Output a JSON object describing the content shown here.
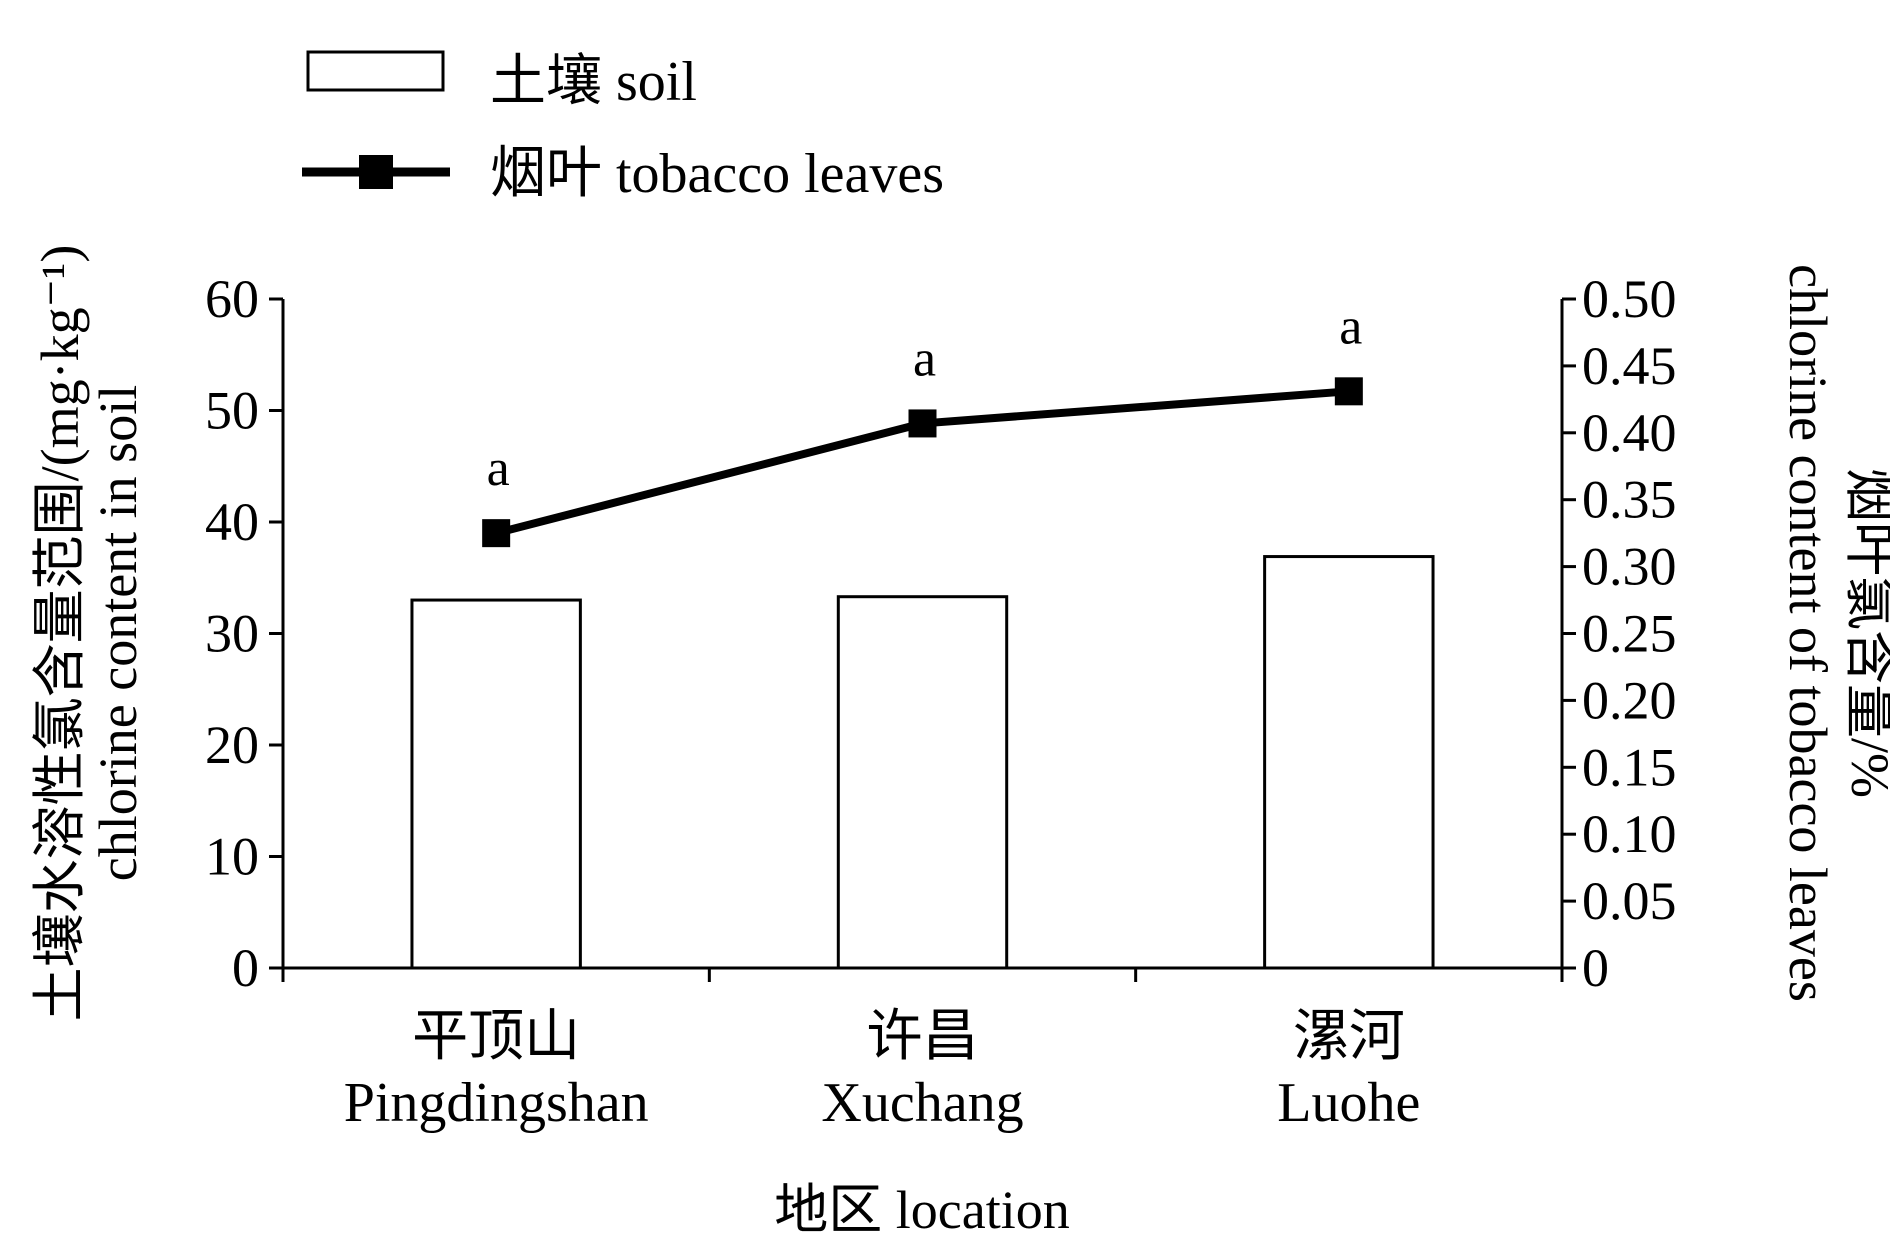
{
  "chart_data": {
    "type": "bar",
    "categories": [
      {
        "zh": "平顶山",
        "en": "Pingdingshan"
      },
      {
        "zh": "许昌",
        "en": "Xuchang"
      },
      {
        "zh": "漯河",
        "en": "Luohe"
      }
    ],
    "series": [
      {
        "name": "土壤 soil",
        "type": "bar",
        "axis": "left",
        "values": [
          33.0,
          33.3,
          36.9
        ],
        "fill": "#ffffff",
        "stroke": "#000000"
      },
      {
        "name": "烟叶 tobacco leaves",
        "type": "line",
        "axis": "right",
        "marker": "square",
        "values": [
          0.325,
          0.407,
          0.431
        ],
        "significance": [
          "a",
          "a",
          "a"
        ],
        "color": "#000000"
      }
    ],
    "y_left": {
      "label_zh": "土壤水溶性氯含量范围/(mg·kg⁻¹)",
      "label_en": "chlorine content in soil",
      "ylim": [
        0,
        60
      ],
      "ticks": [
        "0",
        "10",
        "20",
        "30",
        "40",
        "50",
        "60"
      ]
    },
    "y_right": {
      "label_zh": "烟叶氯含量/%",
      "label_en": "chlorine content of tobacco leaves",
      "ylim": [
        0,
        0.5
      ],
      "ticks": [
        "0",
        "0.05",
        "0.10",
        "0.15",
        "0.20",
        "0.25",
        "0.30",
        "0.35",
        "0.40",
        "0.45",
        "0.50"
      ]
    },
    "xlabel": "地区 location",
    "legend_position": "top-left",
    "grid": false
  }
}
